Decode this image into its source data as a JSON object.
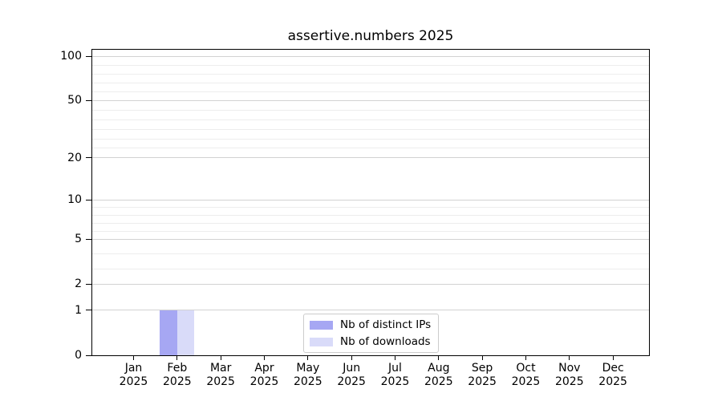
{
  "chart_data": {
    "type": "bar",
    "title": "assertive.numbers 2025",
    "categories": [
      "Jan 2025",
      "Feb 2025",
      "Mar 2025",
      "Apr 2025",
      "May 2025",
      "Jun 2025",
      "Jul 2025",
      "Aug 2025",
      "Sep 2025",
      "Oct 2025",
      "Nov 2025",
      "Dec 2025"
    ],
    "series": [
      {
        "name": "Nb of distinct IPs",
        "color": "#a6a7f3",
        "values": [
          0,
          1,
          0,
          0,
          0,
          0,
          0,
          0,
          0,
          0,
          0,
          0
        ]
      },
      {
        "name": "Nb of downloads",
        "color": "#d9dbf9",
        "values": [
          0,
          1,
          0,
          0,
          0,
          0,
          0,
          0,
          0,
          0,
          0,
          0
        ]
      }
    ],
    "xlabel": "",
    "ylabel": "",
    "yscale": "log1p",
    "ylim": [
      0,
      100
    ],
    "major_yticks": [
      0,
      1,
      2,
      5,
      10,
      20,
      50,
      100
    ],
    "minor_yticks": [
      3,
      4,
      6,
      7,
      8,
      9,
      25,
      30,
      35,
      40,
      45,
      60,
      70,
      80,
      90
    ],
    "grid": "horizontal-only",
    "legend": {
      "position": "inside-bottom-center"
    },
    "colors": {
      "axis": "#000000",
      "text": "#000000",
      "major_grid": "#d2d2d2",
      "minor_grid": "#ededed",
      "legend_border": "#cccccc",
      "background": "#ffffff"
    }
  }
}
